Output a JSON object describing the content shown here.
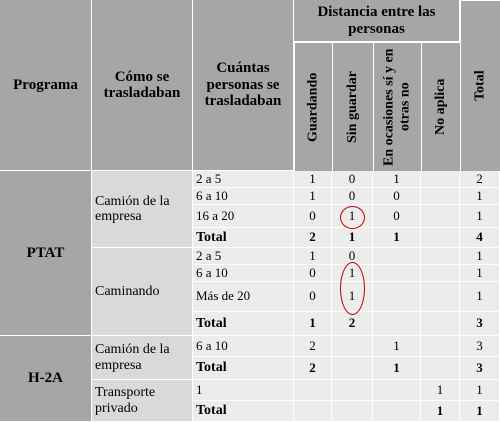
{
  "headers": {
    "programa": "Programa",
    "como": "Cómo se trasladaban",
    "cuantas": "Cuántas personas se trasladaban",
    "distancia": "Distancia entre las personas",
    "guardando": "Guardando",
    "sin_guardar": "Sin guardar",
    "ocasiones": "En ocasiones sí y en otras no",
    "no_aplica": "No aplica",
    "total": "Total"
  },
  "groups": {
    "ptat": "PTAT",
    "h2a": "H-2A"
  },
  "modes": {
    "camion": "Camión de la empresa",
    "caminando": "Caminando",
    "camion2": "Camión de la empresa",
    "transporte": "Transporte privado"
  },
  "rows": [
    {
      "size": "2 a 5",
      "g": "1",
      "s": "0",
      "o": "1",
      "n": "",
      "t": "2"
    },
    {
      "size": "6 a 10",
      "g": "1",
      "s": "0",
      "o": "0",
      "n": "",
      "t": "1"
    },
    {
      "size": "16 a 20",
      "g": "0",
      "s": "1",
      "o": "0",
      "n": "",
      "t": "1"
    },
    {
      "size": "Total",
      "g": "2",
      "s": "1",
      "o": "1",
      "n": "",
      "t": "4"
    },
    {
      "size": "2 a 5",
      "g": "1",
      "s": "0",
      "o": "",
      "n": "",
      "t": "1"
    },
    {
      "size": "6 a 10",
      "g": "0",
      "s": "1",
      "o": "",
      "n": "",
      "t": "1"
    },
    {
      "size": "Más de 20",
      "g": "0",
      "s": "1",
      "o": "",
      "n": "",
      "t": "1"
    },
    {
      "size": "Total",
      "g": "1",
      "s": "2",
      "o": "",
      "n": "",
      "t": "3"
    },
    {
      "size": "6 a 10",
      "g": "2",
      "s": "",
      "o": "1",
      "n": "",
      "t": "3"
    },
    {
      "size": "Total",
      "g": "2",
      "s": "",
      "o": "1",
      "n": "",
      "t": "3"
    },
    {
      "size": "1",
      "g": "",
      "s": "",
      "o": "",
      "n": "1",
      "t": "1"
    },
    {
      "size": "Total",
      "g": "",
      "s": "",
      "o": "",
      "n": "1",
      "t": "1"
    }
  ]
}
